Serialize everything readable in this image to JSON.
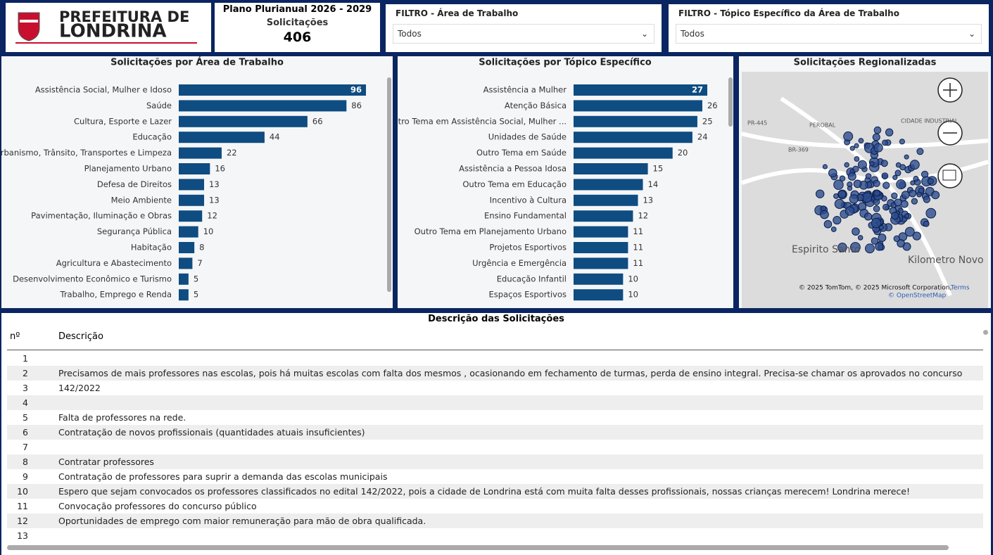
{
  "header": {
    "logo_line1": "PREFEITURA DE",
    "logo_line2": "LONDRINA",
    "title": "Plano Plurianual 2026 - 2029",
    "kpi_label": "Solicitações",
    "kpi_value": 406
  },
  "filters": [
    {
      "label": "FILTRO - Área de Trabalho",
      "value": "Todos"
    },
    {
      "label": "FILTRO - Tópico Específico da Área de Trabalho",
      "value": "Todos"
    }
  ],
  "chart_data": [
    {
      "type": "bar",
      "orientation": "horizontal",
      "title": "Solicitações por Área de Trabalho",
      "color": "#0f4c81",
      "categories": [
        "Assistência Social, Mulher e Idoso",
        "Saúde",
        "Cultura, Esporte e Lazer",
        "Educação",
        "Urbanismo, Trânsito, Transportes e Limpeza",
        "Planejamento Urbano",
        "Defesa de Direitos",
        "Meio Ambiente",
        "Pavimentação, Iluminação e Obras",
        "Segurança Pública",
        "Habitação",
        "Agricultura e Abastecimento",
        "Desenvolvimento Econômico e Turismo",
        "Trabalho, Emprego e Renda"
      ],
      "values": [
        96,
        86,
        66,
        44,
        22,
        16,
        13,
        13,
        12,
        10,
        8,
        7,
        5,
        5
      ]
    },
    {
      "type": "bar",
      "orientation": "horizontal",
      "title": "Solicitações por Tópico Específico",
      "color": "#0f4c81",
      "categories": [
        "Assistência a Mulher",
        "Atenção Básica",
        "Outro Tema em Assistência Social, Mulher ...",
        "Unidades de Saúde",
        "Outro Tema em Saúde",
        "Assistência a Pessoa Idosa",
        "Outro Tema em Educação",
        "Incentivo à Cultura",
        "Ensino Fundamental",
        "Outro Tema em Planejamento Urbano",
        "Projetos Esportivos",
        "Urgência e Emergência",
        "Educação Infantil",
        "Espaços Esportivos"
      ],
      "values": [
        27,
        26,
        25,
        24,
        20,
        15,
        14,
        13,
        12,
        11,
        11,
        11,
        10,
        10
      ]
    }
  ],
  "map": {
    "title": "Solicitações Regionalizadas",
    "places": [
      "PR-445",
      "BR-369",
      "PEROBAL",
      "CIDADE INDUSTRIAL",
      "Espirito Santo",
      "Kilometro Novo"
    ],
    "attribution": "© 2025 TomTom, © 2025 Microsoft Corporation,",
    "terms": "Terms",
    "osm": "© OpenStreetMap"
  },
  "table": {
    "title": "Descrição das Solicitações",
    "columns": [
      "nº",
      "Descrição"
    ],
    "rows": [
      [
        1
      ],
      [
        2,
        "Precisamos de mais professores nas escolas, pois há muitas escolas com falta dos mesmos , ocasionando em fechamento de turmas, perda de ensino integral. Precisa-se chamar os aprovados no concurso 142/2022"
      ],
      [
        3
      ],
      [
        4
      ],
      [
        5,
        "Falta de professores na rede."
      ],
      [
        6,
        "Contratação de novos profissionais (quantidades atuais insuficientes)"
      ],
      [
        7
      ],
      [
        8,
        "Contratar professores"
      ],
      [
        9,
        "Contratação de professores para suprir a demanda das escolas municipais"
      ],
      [
        10,
        "Espero que sejam convocados os professores classificados no edital 142/2022, pois a cidade de Londrina está com muita falta desses profissionais, nossas crianças merecem! Londrina merece!"
      ],
      [
        11,
        "Convocação professores do concurso público"
      ],
      [
        12,
        "Oportunidades de emprego com maior remuneração para mão de obra qualificada."
      ],
      [
        13
      ]
    ]
  }
}
